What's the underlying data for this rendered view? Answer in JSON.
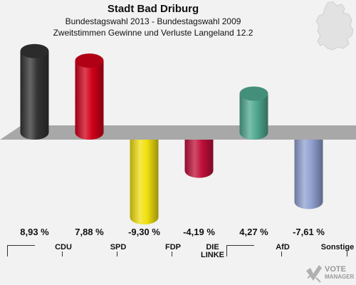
{
  "header": {
    "title": "Stadt Bad Driburg",
    "subtitle1": "Bundestagswahl 2013 - Bundestagswahl 2009",
    "subtitle2": "Zweitstimmen Gewinne und Verluste Langeland 12.2"
  },
  "colors": {
    "CDU": "#333333",
    "SPD": "#d0001a",
    "FDP": "#f0e010",
    "DIE LINKE": "#c0103a",
    "AfD": "#50a890",
    "Sonstige": "#90a0d0",
    "baseline": "#a8a8a8",
    "background": "#f2f2f2"
  },
  "chart_data": {
    "type": "bar",
    "categories": [
      "CDU",
      "SPD",
      "FDP",
      "DIE LINKE",
      "AfD",
      "Sonstige"
    ],
    "values": [
      8.93,
      7.88,
      -9.3,
      -4.19,
      4.27,
      -7.61
    ],
    "value_labels": [
      "8,93 %",
      "7,88 %",
      "-9,30 %",
      "-4,19 %",
      "4,27 %",
      "-7,61 %"
    ],
    "title": "Stadt Bad Driburg",
    "subtitle": "Bundestagswahl 2013 - Bundestagswahl 2009 / Zweitstimmen Gewinne und Verluste Langeland 12.2",
    "ylim": [
      -10,
      10
    ],
    "grid": false,
    "legend": "none"
  },
  "logo": {
    "line1": "VOTE",
    "line2": "MANAGER"
  }
}
